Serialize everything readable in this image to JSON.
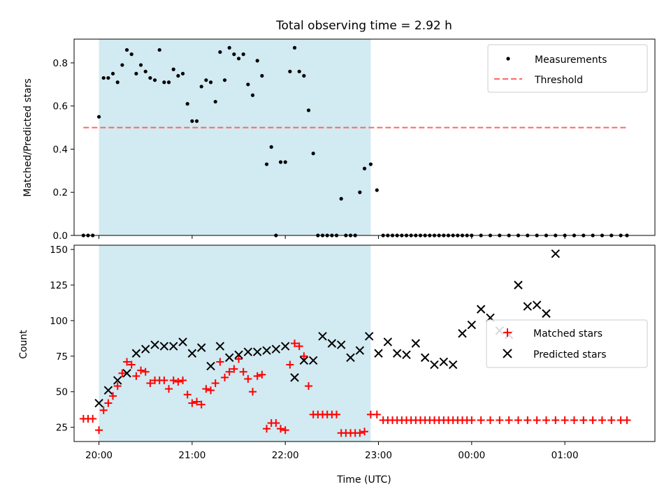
{
  "chart_data": [
    {
      "type": "scatter",
      "title": "Total observing time = 2.92 h",
      "xlabel": "",
      "ylabel": "Matched/Predicted stars",
      "ylim": [
        0,
        0.91
      ],
      "xlim": [
        "19:44",
        "01:58"
      ],
      "yticks": [
        0.0,
        0.2,
        0.4,
        0.6,
        0.8
      ],
      "yticklabels": [
        "0.0",
        "0.2",
        "0.4",
        "0.6",
        "0.8"
      ],
      "shaded_span": [
        "20:00",
        "22:55"
      ],
      "shade_color": "#add8e6",
      "legend": {
        "placement": "top-right",
        "entries": [
          "Measurements",
          "Threshold"
        ]
      },
      "threshold": {
        "name": "Threshold",
        "value": 0.5,
        "x_start": "19:50",
        "x_end": "01:40",
        "color": "#ff6666",
        "style": "dashed"
      },
      "series": [
        {
          "name": "Measurements",
          "marker": "dot",
          "color": "#000000",
          "x": [
            "19:50",
            "19:53",
            "19:56",
            "20:00",
            "20:03",
            "20:06",
            "20:09",
            "20:12",
            "20:15",
            "20:18",
            "20:21",
            "20:24",
            "20:27",
            "20:30",
            "20:33",
            "20:36",
            "20:39",
            "20:42",
            "20:45",
            "20:48",
            "20:51",
            "20:54",
            "20:57",
            "21:00",
            "21:03",
            "21:06",
            "21:09",
            "21:12",
            "21:15",
            "21:18",
            "21:21",
            "21:24",
            "21:27",
            "21:30",
            "21:33",
            "21:36",
            "21:39",
            "21:42",
            "21:45",
            "21:48",
            "21:51",
            "21:54",
            "21:57",
            "22:00",
            "22:03",
            "22:06",
            "22:09",
            "22:12",
            "22:15",
            "22:18",
            "22:21",
            "22:24",
            "22:27",
            "22:30",
            "22:33",
            "22:36",
            "22:39",
            "22:42",
            "22:45",
            "22:48",
            "22:51",
            "22:55",
            "22:59",
            "23:03",
            "23:06",
            "23:09",
            "23:12",
            "23:15",
            "23:18",
            "23:21",
            "23:24",
            "23:27",
            "23:30",
            "23:33",
            "23:36",
            "23:39",
            "23:42",
            "23:45",
            "23:48",
            "23:51",
            "23:54",
            "23:57",
            "00:00",
            "00:06",
            "00:12",
            "00:18",
            "00:24",
            "00:30",
            "00:36",
            "00:42",
            "00:48",
            "00:54",
            "01:00",
            "01:06",
            "01:12",
            "01:18",
            "01:24",
            "01:30",
            "01:36",
            "01:40"
          ],
          "y": [
            0.0,
            0.0,
            0.0,
            0.55,
            0.73,
            0.73,
            0.75,
            0.71,
            0.79,
            0.86,
            0.84,
            0.75,
            0.79,
            0.76,
            0.73,
            0.72,
            0.86,
            0.71,
            0.71,
            0.77,
            0.74,
            0.75,
            0.61,
            0.53,
            0.53,
            0.69,
            0.72,
            0.71,
            0.62,
            0.85,
            0.72,
            0.87,
            0.84,
            0.82,
            0.84,
            0.7,
            0.65,
            0.81,
            0.74,
            0.33,
            0.41,
            0.0,
            0.34,
            0.34,
            0.76,
            0.87,
            0.76,
            0.74,
            0.58,
            0.38,
            0.0,
            0.0,
            0.0,
            0.0,
            0.0,
            0.17,
            0.0,
            0.0,
            0.0,
            0.2,
            0.31,
            0.33,
            0.21,
            0.0,
            0.0,
            0.0,
            0.0,
            0.0,
            0.0,
            0.0,
            0.0,
            0.0,
            0.0,
            0.0,
            0.0,
            0.0,
            0.0,
            0.0,
            0.0,
            0.0,
            0.0,
            0.0,
            0.0,
            0.0,
            0.0,
            0.0,
            0.0,
            0.0,
            0.0,
            0.0,
            0.0,
            0.0,
            0.0,
            0.0,
            0.0,
            0.0,
            0.0,
            0.0,
            0.0,
            0.0
          ]
        }
      ]
    },
    {
      "type": "scatter",
      "title": "",
      "xlabel": "Time (UTC)",
      "ylabel": "Count",
      "ylim": [
        15,
        153
      ],
      "xlim": [
        "19:44",
        "01:58"
      ],
      "yticks": [
        25,
        50,
        75,
        100,
        125,
        150
      ],
      "yticklabels": [
        "25",
        "50",
        "75",
        "100",
        "125",
        "150"
      ],
      "xticklabels": [
        "20:00",
        "21:00",
        "22:00",
        "23:00",
        "00:00",
        "01:00"
      ],
      "shaded_span": [
        "20:00",
        "22:55"
      ],
      "shade_color": "#add8e6",
      "legend": {
        "placement": "center-right",
        "entries": [
          "Matched stars",
          "Predicted stars"
        ]
      },
      "series": [
        {
          "name": "Matched stars",
          "marker": "plus",
          "color": "#ff0000",
          "x": [
            "19:50",
            "19:53",
            "19:56",
            "20:00",
            "20:03",
            "20:06",
            "20:09",
            "20:12",
            "20:15",
            "20:18",
            "20:21",
            "20:24",
            "20:27",
            "20:30",
            "20:33",
            "20:36",
            "20:39",
            "20:42",
            "20:45",
            "20:48",
            "20:51",
            "20:54",
            "20:57",
            "21:00",
            "21:03",
            "21:06",
            "21:09",
            "21:12",
            "21:15",
            "21:18",
            "21:21",
            "21:24",
            "21:27",
            "21:30",
            "21:33",
            "21:36",
            "21:39",
            "21:42",
            "21:45",
            "21:48",
            "21:51",
            "21:54",
            "21:57",
            "22:00",
            "22:03",
            "22:06",
            "22:09",
            "22:12",
            "22:15",
            "22:18",
            "22:21",
            "22:24",
            "22:27",
            "22:30",
            "22:33",
            "22:36",
            "22:39",
            "22:42",
            "22:45",
            "22:48",
            "22:51",
            "22:55",
            "22:59",
            "23:03",
            "23:06",
            "23:09",
            "23:12",
            "23:15",
            "23:18",
            "23:21",
            "23:24",
            "23:27",
            "23:30",
            "23:33",
            "23:36",
            "23:39",
            "23:42",
            "23:45",
            "23:48",
            "23:51",
            "23:54",
            "23:57",
            "00:00",
            "00:06",
            "00:12",
            "00:18",
            "00:24",
            "00:30",
            "00:36",
            "00:42",
            "00:48",
            "00:54",
            "01:00",
            "01:06",
            "01:12",
            "01:18",
            "01:24",
            "01:30",
            "01:36",
            "01:40"
          ],
          "y": [
            31,
            31,
            31,
            23,
            37,
            42,
            47,
            54,
            63,
            71,
            69,
            61,
            65,
            64,
            56,
            58,
            58,
            58,
            52,
            58,
            57,
            58,
            48,
            42,
            43,
            41,
            52,
            51,
            56,
            71,
            60,
            64,
            66,
            73,
            64,
            59,
            50,
            61,
            62,
            24,
            28,
            28,
            24,
            23,
            69,
            84,
            82,
            75,
            54,
            34,
            34,
            34,
            34,
            34,
            34,
            21,
            21,
            21,
            21,
            21,
            22,
            34,
            34,
            30,
            30,
            30,
            30,
            30,
            30,
            30,
            30,
            30,
            30,
            30,
            30,
            30,
            30,
            30,
            30,
            30,
            30,
            30,
            30,
            30,
            30,
            30,
            30,
            30,
            30,
            30,
            30,
            30,
            30,
            30,
            30,
            30,
            30,
            30,
            30,
            30
          ]
        },
        {
          "name": "Predicted stars",
          "marker": "x",
          "color": "#000000",
          "x": [
            "20:00",
            "20:06",
            "20:12",
            "20:18",
            "20:24",
            "20:30",
            "20:36",
            "20:42",
            "20:48",
            "20:54",
            "21:00",
            "21:06",
            "21:12",
            "21:18",
            "21:24",
            "21:30",
            "21:36",
            "21:42",
            "21:48",
            "21:54",
            "22:00",
            "22:06",
            "22:12",
            "22:18",
            "22:24",
            "22:30",
            "22:36",
            "22:42",
            "22:48",
            "22:54",
            "23:00",
            "23:06",
            "23:12",
            "23:18",
            "23:24",
            "23:30",
            "23:36",
            "23:42",
            "23:48",
            "23:54",
            "00:00",
            "00:06",
            "00:12",
            "00:18",
            "00:24",
            "00:30",
            "00:36",
            "00:42",
            "00:48",
            "00:54"
          ],
          "y": [
            42,
            51,
            58,
            63,
            77,
            80,
            83,
            82,
            82,
            85,
            77,
            81,
            68,
            82,
            74,
            76,
            78,
            78,
            79,
            80,
            82,
            60,
            72,
            72,
            89,
            84,
            83,
            74,
            79,
            89,
            77,
            85,
            77,
            76,
            84,
            74,
            69,
            71,
            69,
            91,
            97,
            108,
            102,
            93,
            90,
            125,
            110,
            111,
            105,
            147
          ]
        }
      ]
    }
  ]
}
